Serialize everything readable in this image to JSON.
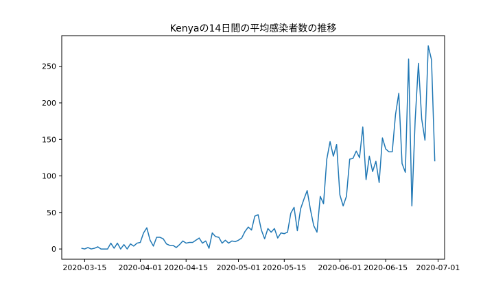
{
  "chart_data": {
    "type": "line",
    "title": "Kenyaの14日間の平均感染者数の推移",
    "xlabel": "",
    "ylabel": "",
    "x_start": "2020-03-14",
    "x_end": "2020-06-29",
    "xlim": [
      "2020-03-08",
      "2020-07-03"
    ],
    "ylim": [
      -14,
      292
    ],
    "x_ticks": [
      "2020-03-15",
      "2020-04-01",
      "2020-04-15",
      "2020-05-01",
      "2020-05-15",
      "2020-06-01",
      "2020-06-15",
      "2020-07-01"
    ],
    "y_ticks": [
      0,
      50,
      100,
      150,
      200,
      250
    ],
    "grid": false,
    "line_color": "#1f77b4",
    "series": [
      {
        "values": [
          1,
          0,
          2,
          0,
          1,
          3,
          0,
          0,
          0,
          8,
          1,
          8,
          0,
          6,
          0,
          7,
          4,
          8,
          9,
          22,
          29,
          12,
          4,
          16,
          16,
          14,
          7,
          5,
          5,
          2,
          6,
          11,
          8,
          9,
          9,
          12,
          15,
          8,
          11,
          1,
          22,
          17,
          16,
          8,
          12,
          8,
          11,
          10,
          12,
          15,
          24,
          30,
          26,
          45,
          47,
          26,
          14,
          28,
          23,
          28,
          15,
          22,
          21,
          23,
          49,
          57,
          25,
          55,
          68,
          80,
          54,
          32,
          23,
          72,
          62,
          123,
          147,
          127,
          143,
          74,
          59,
          72,
          123,
          124,
          134,
          125,
          167,
          95,
          127,
          106,
          120,
          91,
          152,
          137,
          133,
          133,
          184,
          213,
          117,
          105,
          260,
          59,
          176,
          254,
          178,
          149,
          278,
          259,
          120
        ]
      }
    ]
  }
}
